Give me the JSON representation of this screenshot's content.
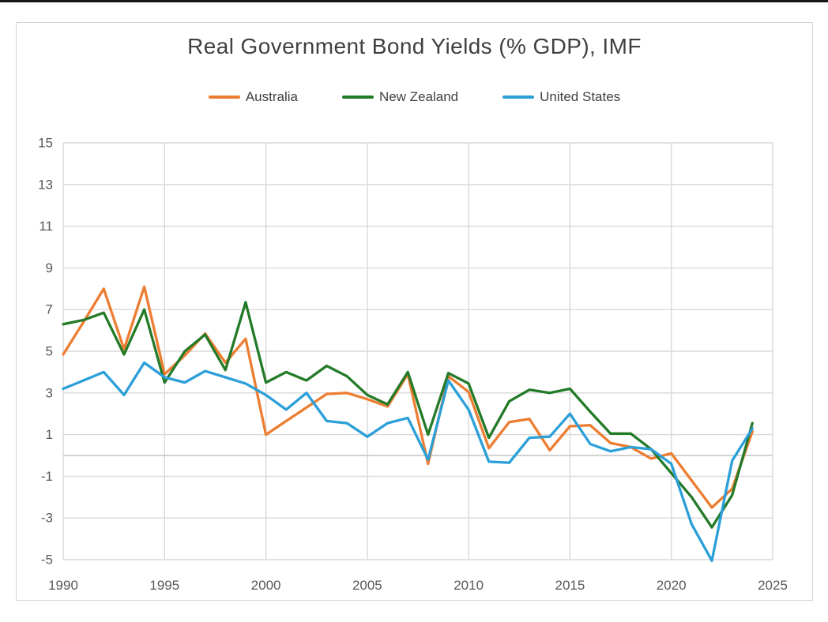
{
  "chart_data": {
    "type": "line",
    "title": "Real Government Bond Yields (% GDP), IMF",
    "x": [
      1990,
      1991,
      1992,
      1993,
      1994,
      1995,
      1996,
      1997,
      1998,
      1999,
      2000,
      2001,
      2002,
      2003,
      2004,
      2005,
      2006,
      2007,
      2008,
      2009,
      2010,
      2011,
      2012,
      2013,
      2014,
      2015,
      2016,
      2017,
      2018,
      2019,
      2020,
      2021,
      2022,
      2023,
      2024
    ],
    "series": [
      {
        "name": "Australia",
        "color": "#ED7D31",
        "values": [
          4.85,
          6.4,
          8.0,
          5.1,
          8.1,
          3.9,
          4.8,
          5.85,
          4.45,
          5.6,
          1.0,
          1.65,
          2.3,
          2.95,
          3.0,
          2.7,
          2.35,
          3.9,
          -0.4,
          3.8,
          3.05,
          0.35,
          1.6,
          1.75,
          0.25,
          1.4,
          1.45,
          0.6,
          0.4,
          -0.15,
          0.1,
          -1.2,
          -2.5,
          -1.6,
          1.15
        ]
      },
      {
        "name": "New Zealand",
        "color": "#237A28",
        "values": [
          6.3,
          6.5,
          6.85,
          4.85,
          7.0,
          3.5,
          5.0,
          5.8,
          4.1,
          7.35,
          3.5,
          4.0,
          3.6,
          4.3,
          3.8,
          2.9,
          2.45,
          4.0,
          1.0,
          3.95,
          3.45,
          0.85,
          2.6,
          3.15,
          3.0,
          3.2,
          2.1,
          1.05,
          1.05,
          0.3,
          -0.85,
          -2.0,
          -3.45,
          -1.9,
          1.55
        ]
      },
      {
        "name": "United States",
        "color": "#2B9FD8",
        "values": [
          3.2,
          3.6,
          4.0,
          2.9,
          4.45,
          3.75,
          3.5,
          4.05,
          3.75,
          3.45,
          2.9,
          2.2,
          3.0,
          1.65,
          1.55,
          0.9,
          1.55,
          1.8,
          -0.2,
          3.6,
          2.2,
          -0.3,
          -0.35,
          0.85,
          0.9,
          2.0,
          0.55,
          0.2,
          0.4,
          0.3,
          -0.4,
          -3.3,
          -5.05,
          -0.25,
          1.3
        ]
      }
    ],
    "xlabel": "",
    "ylabel": "",
    "xlim": [
      1990,
      2025
    ],
    "ylim": [
      -5,
      15
    ],
    "x_ticks": [
      1990,
      1995,
      2000,
      2005,
      2010,
      2015,
      2020,
      2025
    ],
    "y_ticks": [
      15,
      13,
      11,
      9,
      7,
      5,
      3,
      1,
      -1,
      -3,
      -5
    ],
    "grid": true,
    "zero_axis_line": true,
    "legend_position": "top"
  },
  "style": {
    "grid_color": "#d9d9d9",
    "zero_line_color": "#c3c3c3",
    "tick_label_color": "#595959",
    "title_color": "#404040",
    "line_width": 3.3
  }
}
